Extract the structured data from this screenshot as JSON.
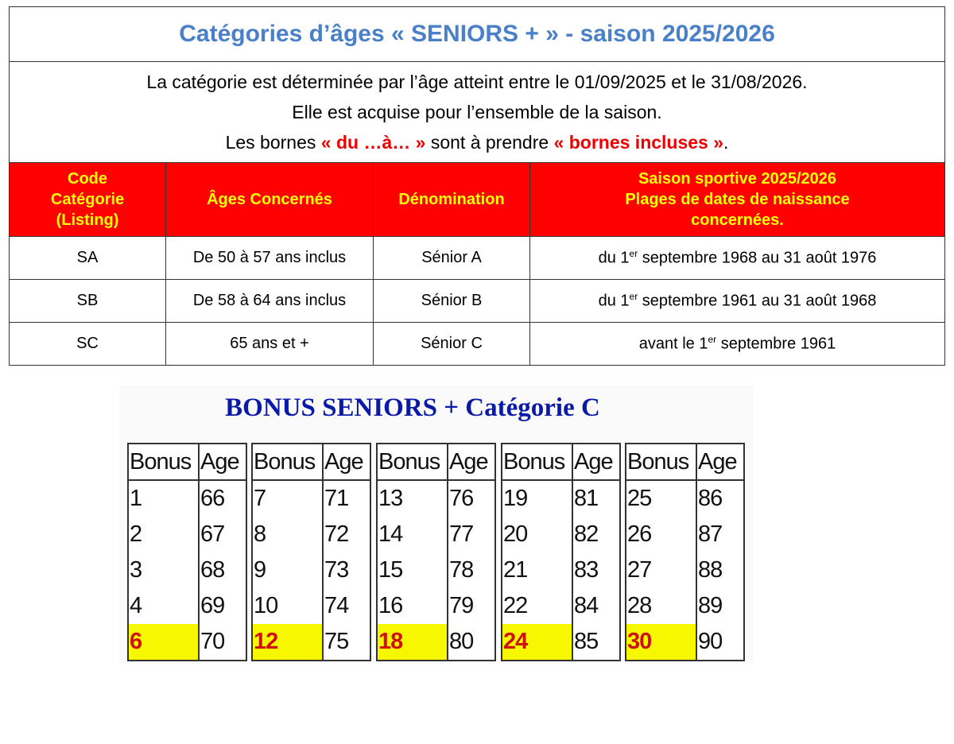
{
  "title": "Catégories d’âges « SENIORS + » - saison 2025/2026",
  "intro": {
    "line1": "La catégorie est déterminée par l’âge atteint entre le 01/09/2025 et le 31/08/2026.",
    "line2": "Elle est acquise pour l’ensemble de la saison.",
    "line3_a": "Les bornes ",
    "line3_b": "« du …à… »",
    "line3_c": " sont à prendre ",
    "line3_d": "« bornes incluses »",
    "line3_e": "."
  },
  "headers": {
    "code": [
      "Code",
      "Catégorie",
      "(Listing)"
    ],
    "ages": "Âges Concernés",
    "denom": "Dénomination",
    "season": [
      "Saison sportive 2025/2026",
      "Plages de dates de naissance",
      "concernées."
    ]
  },
  "rows": [
    {
      "code": "SA",
      "ages": "De 50 à 57 ans inclus",
      "denom": "Sénior A",
      "pre": "du 1",
      "sup": "er",
      "post": " septembre 1968 au 31 août 1976"
    },
    {
      "code": "SB",
      "ages": "De 58 à 64 ans inclus",
      "denom": "Sénior B",
      "pre": "du 1",
      "sup": "er",
      "post": " septembre 1961 au 31 août 1968"
    },
    {
      "code": "SC",
      "ages": "65 ans et +",
      "denom": "Sénior C",
      "pre": "avant le 1",
      "sup": "er",
      "post": " septembre 1961"
    }
  ],
  "bonus": {
    "title": "BONUS SENIORS + Catégorie C",
    "col_bonus": "Bonus",
    "col_age": "Age",
    "highlight_color": "#f7f700",
    "tables": [
      [
        [
          "1",
          "66"
        ],
        [
          "2",
          "67"
        ],
        [
          "3",
          "68"
        ],
        [
          "4",
          "69"
        ],
        [
          "6",
          "70"
        ]
      ],
      [
        [
          "7",
          "71"
        ],
        [
          "8",
          "72"
        ],
        [
          "9",
          "73"
        ],
        [
          "10",
          "74"
        ],
        [
          "12",
          "75"
        ]
      ],
      [
        [
          "13",
          "76"
        ],
        [
          "14",
          "77"
        ],
        [
          "15",
          "78"
        ],
        [
          "16",
          "79"
        ],
        [
          "18",
          "80"
        ]
      ],
      [
        [
          "19",
          "81"
        ],
        [
          "20",
          "82"
        ],
        [
          "21",
          "83"
        ],
        [
          "22",
          "84"
        ],
        [
          "24",
          "85"
        ]
      ],
      [
        [
          "25",
          "86"
        ],
        [
          "26",
          "87"
        ],
        [
          "27",
          "88"
        ],
        [
          "28",
          "89"
        ],
        [
          "30",
          "90"
        ]
      ]
    ]
  }
}
